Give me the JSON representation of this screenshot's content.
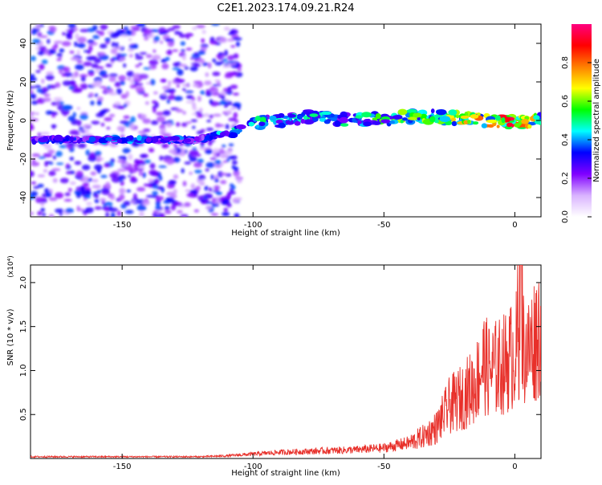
{
  "title": "C2E1.2023.174.09.21.R24",
  "chart_data": [
    {
      "type": "heatmap",
      "xlabel": "Height of straight line (km)",
      "ylabel": "Frequency (Hz)",
      "xlim": [
        -185,
        10
      ],
      "ylim": [
        -50,
        50
      ],
      "x_ticks": [
        -150,
        -100,
        -50,
        0
      ],
      "y_ticks": [
        40,
        20,
        0,
        -20,
        -40
      ],
      "colorbar": {
        "label": "Normalized spectral amplitude",
        "range": [
          0,
          1
        ],
        "ticks": [
          "0.0",
          "0.2",
          "0.4",
          "0.6",
          "0.8"
        ],
        "colors": [
          "#ffffff",
          "#d9b3ff",
          "#8000ff",
          "#0000ff",
          "#00ffff",
          "#00ff00",
          "#ffff00",
          "#ff8000",
          "#ff0000",
          "#ff0080"
        ]
      },
      "ridge": {
        "x": [
          -185,
          -150,
          -120,
          -110,
          -100,
          -90,
          -80,
          -70,
          -60,
          -50,
          -40,
          -30,
          -20,
          -10,
          0,
          10
        ],
        "freq": [
          -10,
          -10,
          -10,
          -6,
          -2,
          0,
          2,
          1,
          0,
          1,
          2,
          2,
          1,
          0,
          -1,
          0
        ],
        "amplitude": [
          0.35,
          0.4,
          0.35,
          0.45,
          0.5,
          0.45,
          0.5,
          0.45,
          0.5,
          0.55,
          0.6,
          0.6,
          0.7,
          0.8,
          0.9,
          0.6
        ]
      }
    },
    {
      "type": "line",
      "xlabel": "Height of straight line (km)",
      "ylabel": "SNR (10 * v/v)",
      "y_multiplier": "(x10⁴)",
      "xlim": [
        -185,
        10
      ],
      "ylim": [
        0,
        2.2
      ],
      "x_ticks": [
        -150,
        -100,
        -50,
        0
      ],
      "y_ticks": [
        0.5,
        1.0,
        1.5,
        2.0
      ],
      "y_tick_labels": [
        "0.5",
        "1.0",
        "1.5",
        "2.0"
      ],
      "series": [
        {
          "color": "#e8302a",
          "x": [
            -185,
            -150,
            -120,
            -110,
            -100,
            -90,
            -80,
            -70,
            -60,
            -50,
            -40,
            -35,
            -30,
            -25,
            -20,
            -15,
            -12,
            -10,
            -5,
            0,
            2,
            5,
            8,
            10
          ],
          "y": [
            0.02,
            0.02,
            0.02,
            0.03,
            0.05,
            0.07,
            0.08,
            0.09,
            0.1,
            0.12,
            0.18,
            0.25,
            0.35,
            0.6,
            0.7,
            0.85,
            1.1,
            1.0,
            1.05,
            1.2,
            1.35,
            1.2,
            1.4,
            1.5
          ]
        }
      ]
    }
  ]
}
